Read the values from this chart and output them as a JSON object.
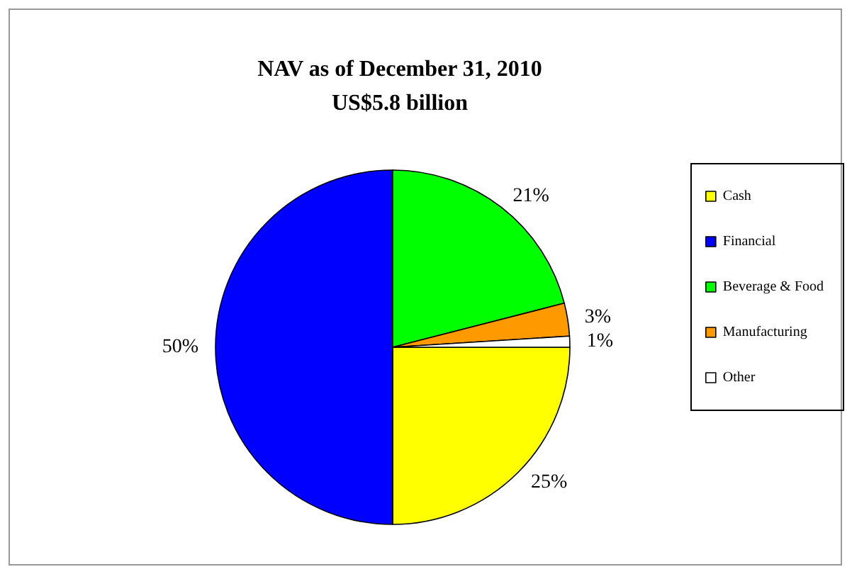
{
  "chart_data": {
    "type": "pie",
    "title": "NAV as of December 31, 2010",
    "subtitle": "US$5.8 billion",
    "categories": [
      "Cash",
      "Financial",
      "Beverage & Food",
      "Manufacturing",
      "Other"
    ],
    "values": [
      25,
      50,
      21,
      3,
      1
    ],
    "colors": [
      "#ffff00",
      "#0000ff",
      "#00ff00",
      "#ff9900",
      "#ffffff"
    ],
    "value_labels": [
      "25%",
      "50%",
      "21%",
      "3%",
      "1%"
    ],
    "legend": "right"
  }
}
